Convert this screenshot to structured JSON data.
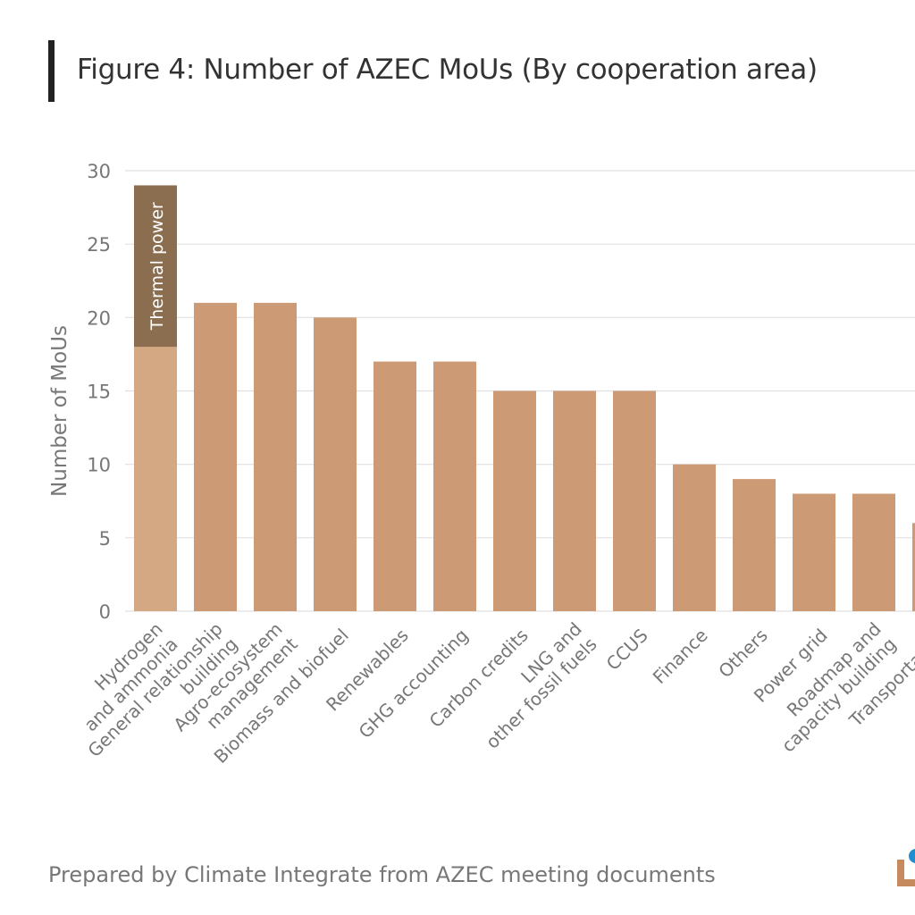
{
  "title": "Figure 4: Number of AZEC MoUs (By cooperation area)",
  "source": "Prepared by Climate Integrate from AZEC meeting documents",
  "colors": {
    "bar": "#cd9a76",
    "hydrogen_base": "#d4a882",
    "thermal": "#8b6e50",
    "grid": "#e0e0e0",
    "axis_text": "#777777"
  },
  "chart_data": {
    "type": "bar",
    "title": "Figure 4: Number of AZEC MoUs (By cooperation area)",
    "xlabel": "",
    "ylabel": "Number of MoUs",
    "ylim": [
      0,
      30
    ],
    "yticks": [
      0,
      5,
      10,
      15,
      20,
      25,
      30
    ],
    "grid": true,
    "categories": [
      [
        "Hydrogen",
        "and ammonia"
      ],
      [
        "General relationship",
        "building"
      ],
      [
        "Agro-ecosystem",
        "management"
      ],
      [
        "Biomass and biofuel"
      ],
      [
        "Renewables"
      ],
      [
        "GHG accounting"
      ],
      [
        "Carbon credits"
      ],
      [
        "LNG and",
        "other fossil fuels"
      ],
      [
        "CCUS"
      ],
      [
        "Finance"
      ],
      [
        "Others"
      ],
      [
        "Power grid"
      ],
      [
        "Roadmap and",
        "capacity building"
      ],
      [
        "Transportation"
      ]
    ],
    "values": [
      18,
      21,
      21,
      20,
      17,
      17,
      15,
      15,
      15,
      10,
      9,
      8,
      8,
      6
    ],
    "stacked_segment": {
      "category_index": 0,
      "name": "Thermal power",
      "value": 11
    }
  }
}
